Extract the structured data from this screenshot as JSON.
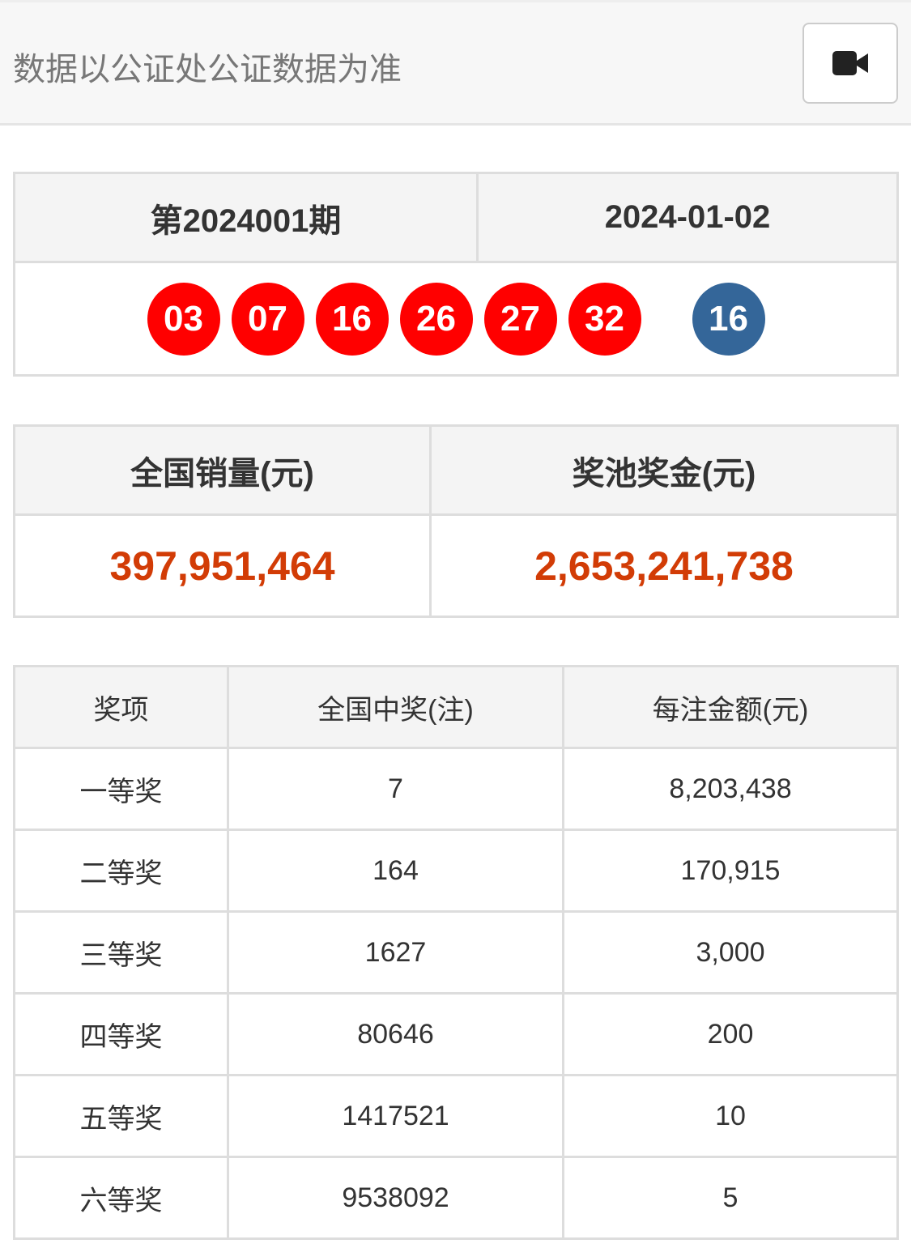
{
  "header": {
    "notice": "数据以公证处公证数据为准",
    "video_icon": "video-camera-icon"
  },
  "draw": {
    "issue": "第2024001期",
    "date": "2024-01-02",
    "red_balls": [
      "03",
      "07",
      "16",
      "26",
      "27",
      "32"
    ],
    "blue_ball": "16",
    "colors": {
      "red": "#ff0000",
      "blue": "#346699"
    }
  },
  "stats": {
    "sales_label": "全国销量(元)",
    "pool_label": "奖池奖金(元)",
    "sales": "397,951,464",
    "pool": "2,653,241,738",
    "value_color": "#d23c06"
  },
  "prizes": {
    "headers": [
      "奖项",
      "全国中奖(注)",
      "每注金额(元)"
    ],
    "rows": [
      [
        "一等奖",
        "7",
        "8,203,438"
      ],
      [
        "二等奖",
        "164",
        "170,915"
      ],
      [
        "三等奖",
        "1627",
        "3,000"
      ],
      [
        "四等奖",
        "80646",
        "200"
      ],
      [
        "五等奖",
        "1417521",
        "10"
      ],
      [
        "六等奖",
        "9538092",
        "5"
      ]
    ]
  }
}
